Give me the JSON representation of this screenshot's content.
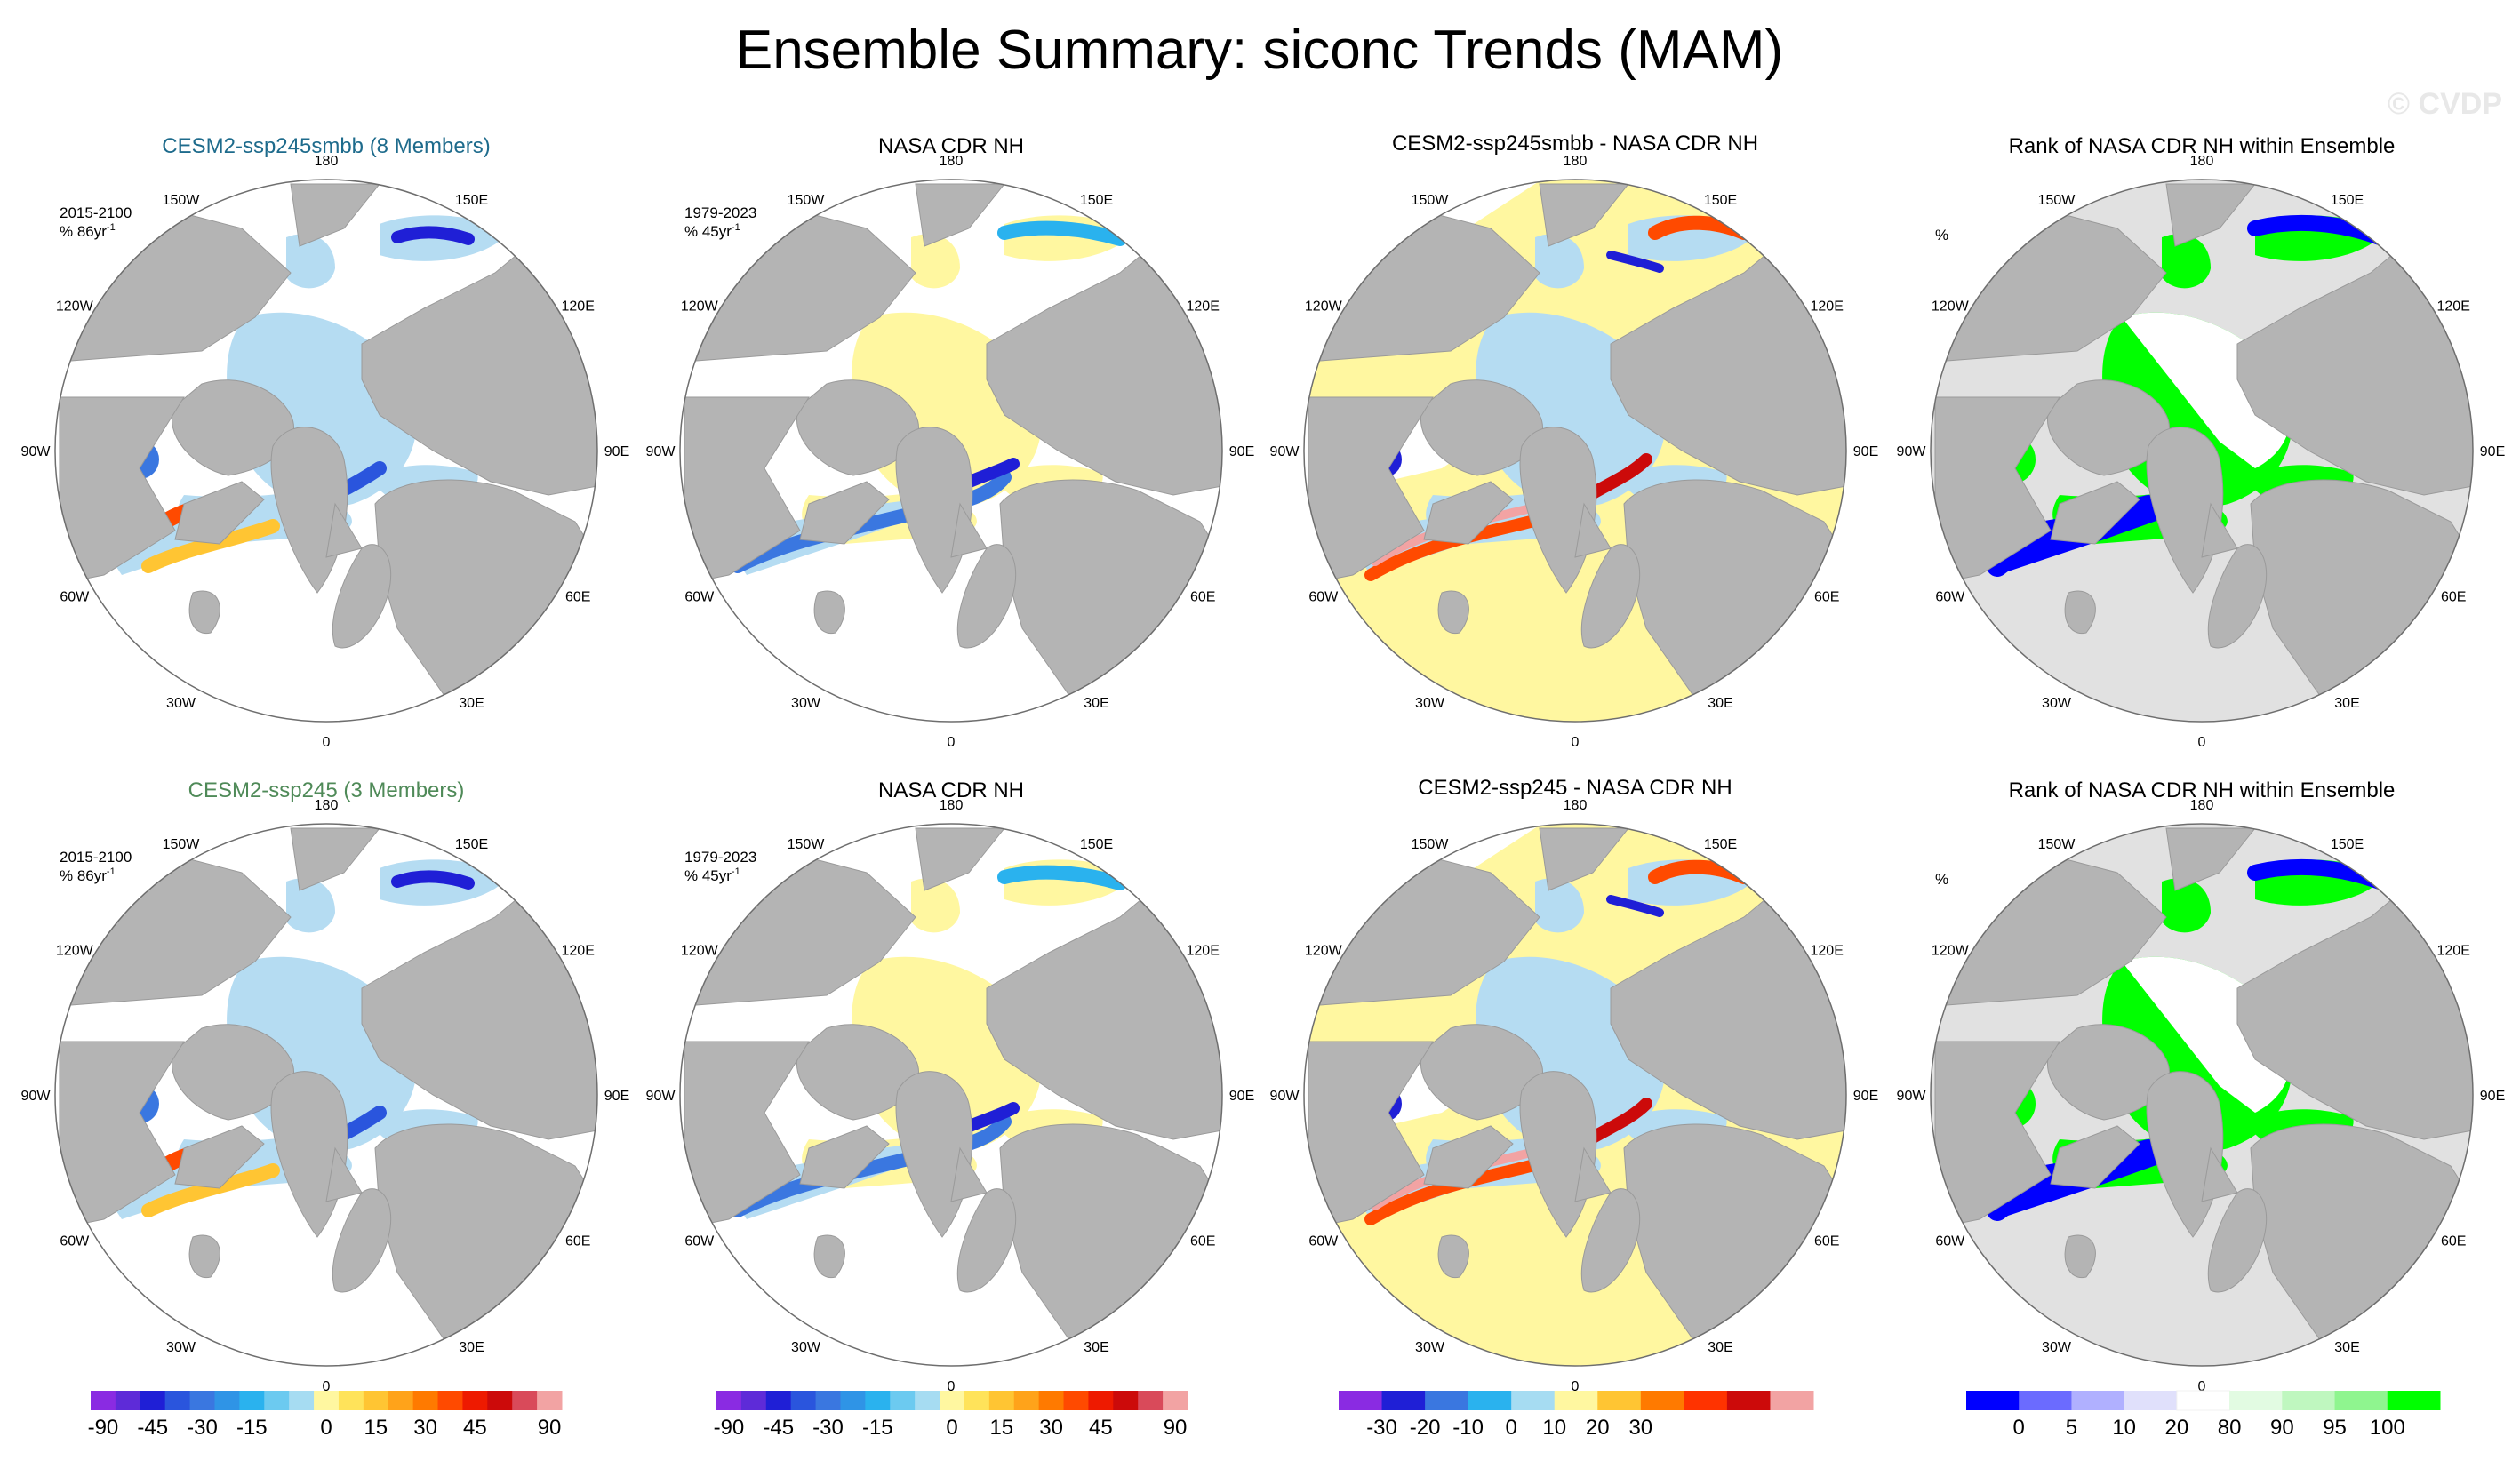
{
  "title": "Ensemble Summary: siconc Trends (MAM)",
  "watermark": "© CVDP",
  "lon_labels": [
    "180",
    "150E",
    "120E",
    "90E",
    "60E",
    "30E",
    "0",
    "30W",
    "60W",
    "90W",
    "120W",
    "150W"
  ],
  "colors": {
    "land": "#b4b4b4",
    "ocean": "#ffffff",
    "ice_light": "#b5dcf2",
    "yellow": "#fff7a0",
    "rank_grey": "#e1e1e1",
    "rank_green": "#00ff00",
    "rank_blue": "#0000ff",
    "model1_title": "#1e6b8c",
    "model2_title": "#4f8a58"
  },
  "chart_data": [
    {
      "type": "heatmap",
      "panel": "row1-col1",
      "title": "CESM2-ssp245smbb (8 Members)",
      "title_color": "model1",
      "period": "2015-2100",
      "units": "% 86yr",
      "exponent": "-1"
    },
    {
      "type": "heatmap",
      "panel": "row1-col2",
      "title": "NASA CDR NH",
      "period": "1979-2023",
      "units": "% 45yr",
      "exponent": "-1"
    },
    {
      "type": "heatmap",
      "panel": "row1-col3",
      "title": "CESM2-ssp245smbb - NASA CDR NH",
      "period": "",
      "units": ""
    },
    {
      "type": "heatmap",
      "panel": "row1-col4",
      "title": "Rank of NASA CDR NH within Ensemble",
      "units": "%"
    },
    {
      "type": "heatmap",
      "panel": "row2-col1",
      "title": "CESM2-ssp245 (3 Members)",
      "title_color": "model2",
      "period": "2015-2100",
      "units": "% 86yr",
      "exponent": "-1"
    },
    {
      "type": "heatmap",
      "panel": "row2-col2",
      "title": "NASA CDR NH",
      "period": "1979-2023",
      "units": "% 45yr",
      "exponent": "-1"
    },
    {
      "type": "heatmap",
      "panel": "row2-col3",
      "title": "CESM2-ssp245 - NASA CDR NH",
      "period": "",
      "units": ""
    },
    {
      "type": "heatmap",
      "panel": "row2-col4",
      "title": "Rank of NASA CDR NH within Ensemble",
      "units": "%"
    }
  ],
  "colorbars": [
    {
      "name": "trend",
      "colors": [
        "#8a2be2",
        "#5e2bd8",
        "#1f1fd6",
        "#2a55dd",
        "#3a77e0",
        "#2f94e6",
        "#2ab2ee",
        "#6ccaf0",
        "#a6dcf2",
        "#fff7a0",
        "#ffe35a",
        "#ffc533",
        "#ffa31a",
        "#ff7a00",
        "#ff4a00",
        "#ee1a00",
        "#cc0a0a",
        "#d94a5a",
        "#f2a3a3"
      ],
      "labels": [
        "-90",
        "-45",
        "-30",
        "-15",
        "0",
        "15",
        "30",
        "45",
        "90"
      ],
      "label_positions": [
        0,
        2,
        4,
        6,
        9,
        11,
        13,
        15,
        18
      ]
    },
    {
      "name": "trend",
      "colors": [
        "#8a2be2",
        "#5e2bd8",
        "#1f1fd6",
        "#2a55dd",
        "#3a77e0",
        "#2f94e6",
        "#2ab2ee",
        "#6ccaf0",
        "#a6dcf2",
        "#fff7a0",
        "#ffe35a",
        "#ffc533",
        "#ffa31a",
        "#ff7a00",
        "#ff4a00",
        "#ee1a00",
        "#cc0a0a",
        "#d94a5a",
        "#f2a3a3"
      ],
      "labels": [
        "-90",
        "-45",
        "-30",
        "-15",
        "0",
        "15",
        "30",
        "45",
        "90"
      ],
      "label_positions": [
        0,
        2,
        4,
        6,
        9,
        11,
        13,
        15,
        18
      ]
    },
    {
      "name": "difference",
      "colors": [
        "#8a2be2",
        "#1f1fd6",
        "#3a77e0",
        "#2ab2ee",
        "#a6dcf2",
        "#fff7a0",
        "#ffc533",
        "#ff7a00",
        "#ff3300",
        "#cc0a0a",
        "#f2a3a3"
      ],
      "labels": [
        "-30",
        "-20",
        "-10",
        "0",
        "10",
        "20",
        "30"
      ],
      "label_positions": [
        1,
        2,
        3,
        4,
        5,
        6,
        7
      ]
    },
    {
      "name": "rank",
      "colors": [
        "#0000ff",
        "#6b6bff",
        "#b0b0ff",
        "#e0e0fb",
        "#ffffff",
        "#e2fbe2",
        "#bff7bf",
        "#8ff58f",
        "#00ff00"
      ],
      "labels": [
        "0",
        "5",
        "10",
        "20",
        "80",
        "90",
        "95",
        "100"
      ],
      "label_positions": [
        1,
        2,
        3,
        4,
        5,
        6,
        7,
        8
      ]
    }
  ]
}
